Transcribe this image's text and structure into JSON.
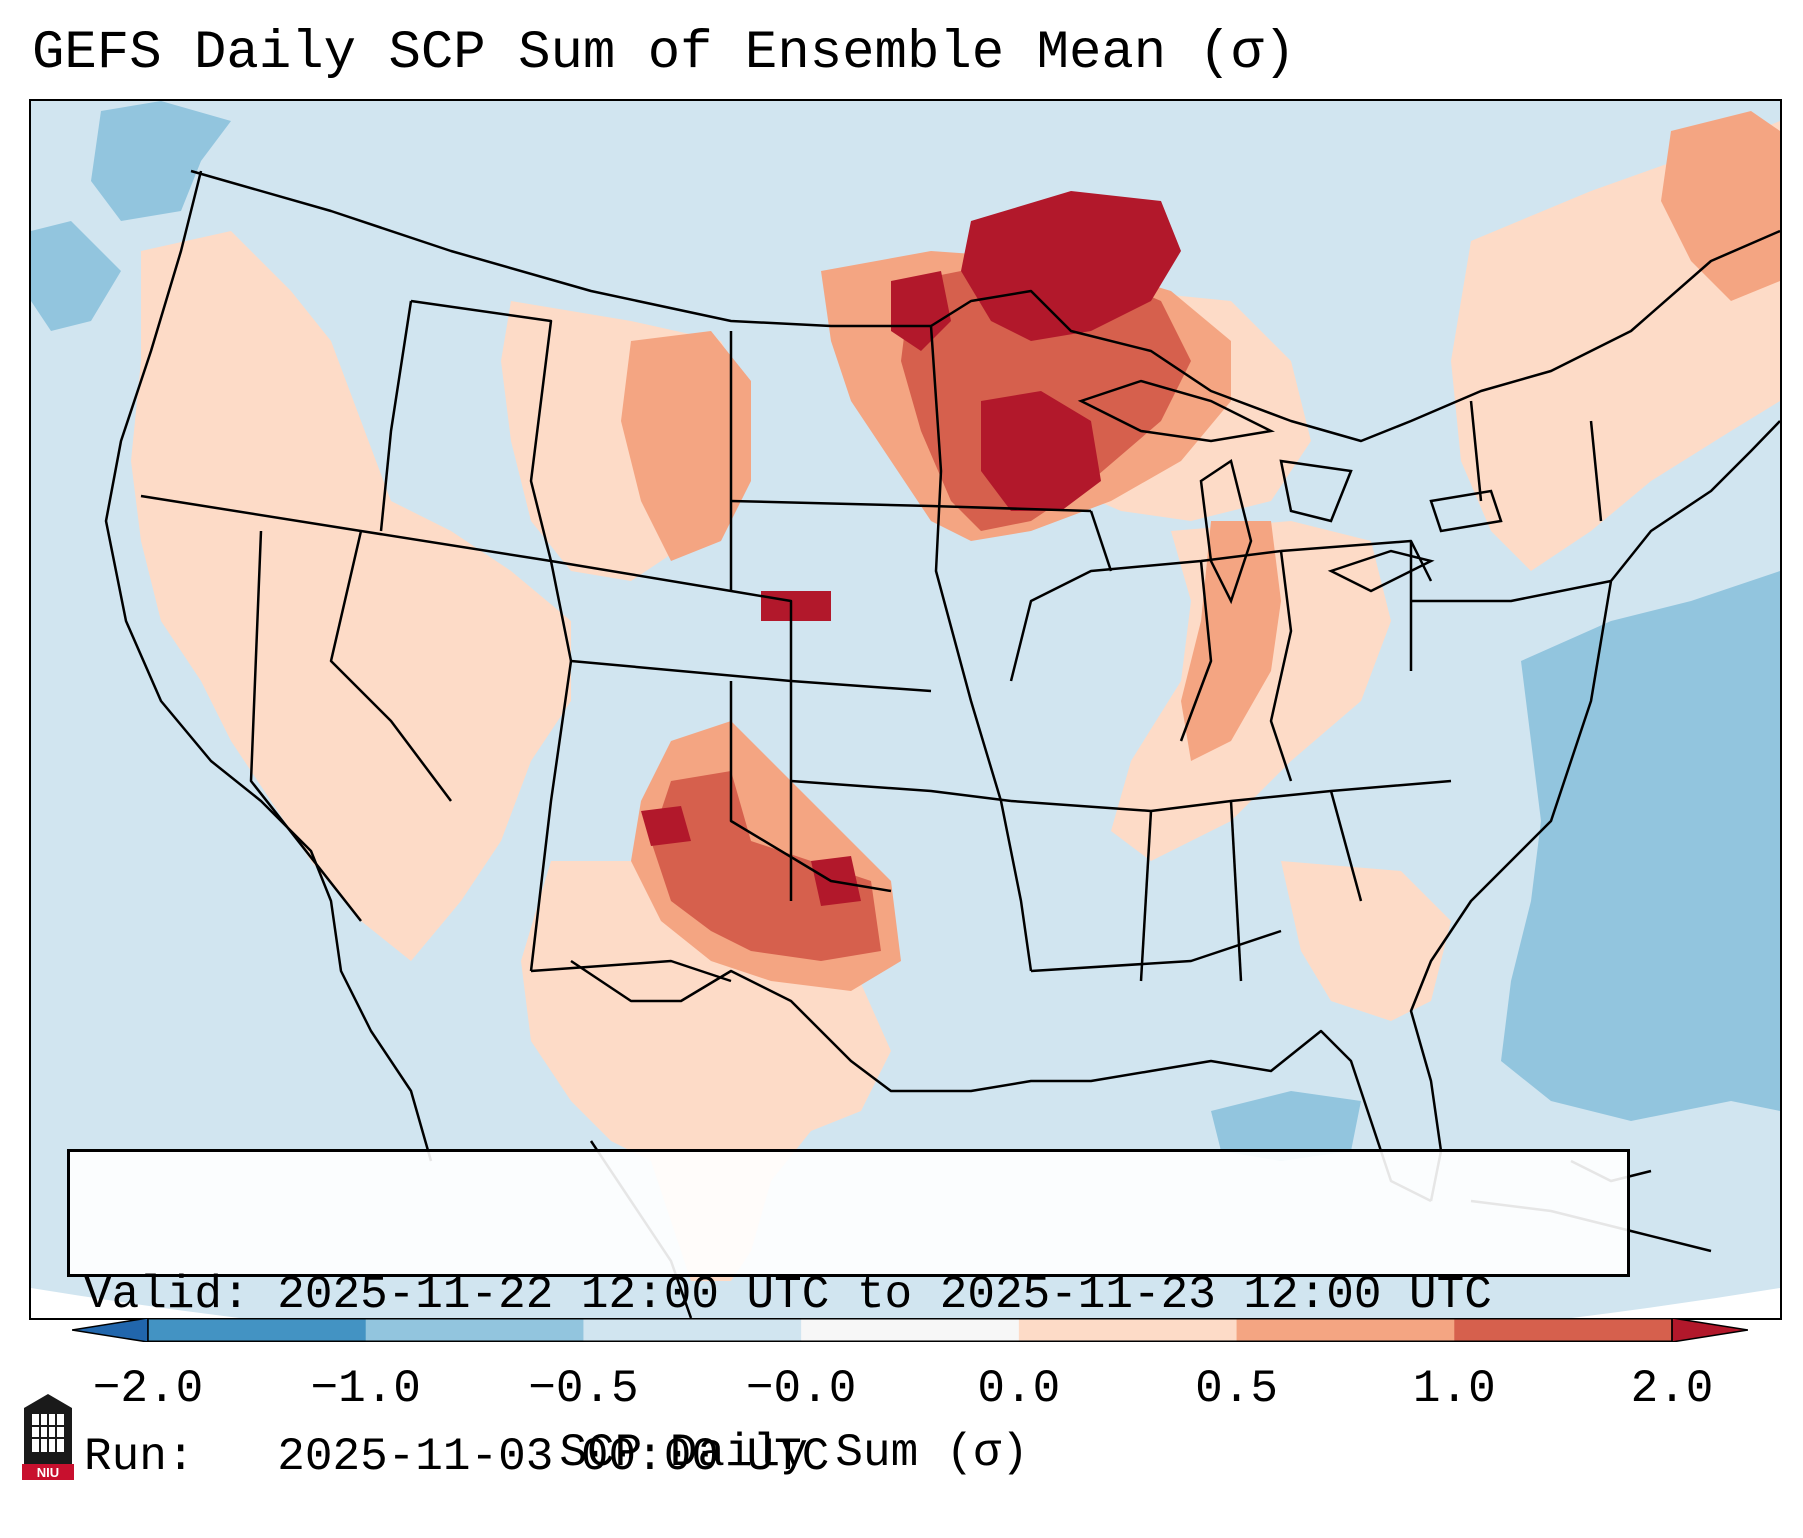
{
  "title": "GEFS Daily SCP Sum of Ensemble Mean (σ)",
  "info": {
    "valid_label": "Valid:",
    "valid_value": "2025-11-22 12:00 UTC to 2025-11-23 12:00 UTC",
    "run_label": "Run:",
    "run_value": "2025-11-03 00:00 UTC"
  },
  "colorbar": {
    "label": "SCP Daily Sum (σ)",
    "ticks": [
      "−2.0",
      "−1.0",
      "−0.5",
      "−0.0",
      "0.0",
      "0.5",
      "1.0",
      "2.0"
    ],
    "bins": [
      {
        "from": -2.0,
        "to": -1.0,
        "color": "#4393c3"
      },
      {
        "from": -1.0,
        "to": -0.5,
        "color": "#92c5de"
      },
      {
        "from": -0.5,
        "to": -0.0,
        "color": "#d1e5f0"
      },
      {
        "from": -0.0,
        "to": 0.0,
        "color": "#f7f7f7"
      },
      {
        "from": 0.0,
        "to": 0.5,
        "color": "#fddbc7"
      },
      {
        "from": 0.5,
        "to": 1.0,
        "color": "#f4a582"
      },
      {
        "from": 1.0,
        "to": 2.0,
        "color": "#d6604d"
      }
    ],
    "under_color": "#2166ac",
    "over_color": "#b2182b"
  },
  "map": {
    "region": "Continental United States",
    "background_category": "-0.5 to -0.0",
    "anomaly_regions": [
      {
        "name": "upper-midwest-maximum",
        "category": "above 2.0"
      },
      {
        "name": "southern-plains-maximum",
        "category": "1.0 to 2.0"
      },
      {
        "name": "ohio-valley-enhanced",
        "category": "0.5 to 1.0"
      },
      {
        "name": "western-mountains",
        "category": "0.0 to 0.5"
      },
      {
        "name": "atlantic-negative",
        "category": "-1.0 to -0.5"
      }
    ]
  },
  "logo": {
    "text": "NIU"
  }
}
